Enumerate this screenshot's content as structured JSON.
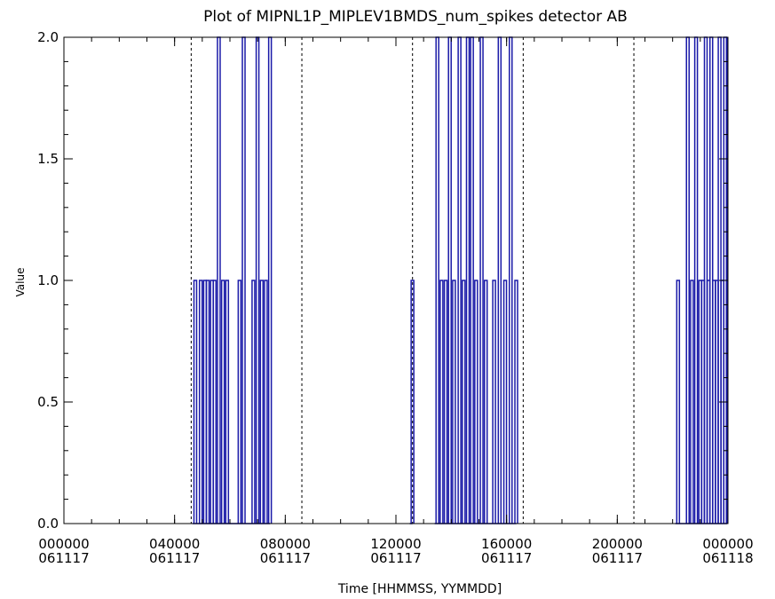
{
  "chart_data": {
    "type": "line",
    "title": "Plot of MIPNL1P_MIPLEV1BMDS_num_spikes detector AB",
    "xlabel": "Time [HHMMSS, YYMMDD]",
    "ylabel": "Value",
    "xlim_hours": [
      0,
      24
    ],
    "ylim": [
      0.0,
      2.0
    ],
    "x_ticks": [
      {
        "time": "000000",
        "date": "061117"
      },
      {
        "time": "040000",
        "date": "061117"
      },
      {
        "time": "080000",
        "date": "061117"
      },
      {
        "time": "120000",
        "date": "061117"
      },
      {
        "time": "160000",
        "date": "061117"
      },
      {
        "time": "200000",
        "date": "061117"
      },
      {
        "time": "000000",
        "date": "061118"
      }
    ],
    "y_ticks": [
      "0.0",
      "0.5",
      "1.0",
      "1.5",
      "2.0"
    ],
    "segment_boundaries_hours": [
      4.6,
      8.6,
      12.6,
      16.6,
      20.6
    ],
    "series": [
      {
        "color": "#1a1aa8",
        "spikes": [
          {
            "x": 4.7,
            "y": 1
          },
          {
            "x": 4.9,
            "y": 1
          },
          {
            "x": 5.05,
            "y": 1
          },
          {
            "x": 5.15,
            "y": 1
          },
          {
            "x": 5.3,
            "y": 1
          },
          {
            "x": 5.4,
            "y": 1
          },
          {
            "x": 5.55,
            "y": 2
          },
          {
            "x": 5.7,
            "y": 1
          },
          {
            "x": 5.85,
            "y": 1
          },
          {
            "x": 6.3,
            "y": 1
          },
          {
            "x": 6.45,
            "y": 2
          },
          {
            "x": 6.8,
            "y": 1
          },
          {
            "x": 6.95,
            "y": 2
          },
          {
            "x": 7.1,
            "y": 1
          },
          {
            "x": 7.25,
            "y": 1
          },
          {
            "x": 7.4,
            "y": 2
          },
          {
            "x": 12.55,
            "y": 1
          },
          {
            "x": 13.45,
            "y": 2
          },
          {
            "x": 13.6,
            "y": 1
          },
          {
            "x": 13.75,
            "y": 1
          },
          {
            "x": 13.9,
            "y": 2
          },
          {
            "x": 14.05,
            "y": 1
          },
          {
            "x": 14.25,
            "y": 2
          },
          {
            "x": 14.4,
            "y": 1
          },
          {
            "x": 14.55,
            "y": 2
          },
          {
            "x": 14.7,
            "y": 2
          },
          {
            "x": 14.85,
            "y": 1
          },
          {
            "x": 15.05,
            "y": 2
          },
          {
            "x": 15.2,
            "y": 1
          },
          {
            "x": 15.5,
            "y": 1
          },
          {
            "x": 15.7,
            "y": 2
          },
          {
            "x": 15.9,
            "y": 1
          },
          {
            "x": 16.1,
            "y": 2
          },
          {
            "x": 16.3,
            "y": 1
          },
          {
            "x": 22.15,
            "y": 1
          },
          {
            "x": 22.5,
            "y": 2
          },
          {
            "x": 22.65,
            "y": 1
          },
          {
            "x": 22.8,
            "y": 2
          },
          {
            "x": 22.95,
            "y": 1
          },
          {
            "x": 23.05,
            "y": 1
          },
          {
            "x": 23.15,
            "y": 2
          },
          {
            "x": 23.25,
            "y": 1
          },
          {
            "x": 23.35,
            "y": 2
          },
          {
            "x": 23.45,
            "y": 1
          },
          {
            "x": 23.55,
            "y": 1
          },
          {
            "x": 23.65,
            "y": 2
          },
          {
            "x": 23.75,
            "y": 1
          },
          {
            "x": 23.85,
            "y": 2
          },
          {
            "x": 23.95,
            "y": 1
          },
          {
            "x": 24.1,
            "y": 2
          },
          {
            "x": 24.25,
            "y": 1
          },
          {
            "x": 24.4,
            "y": 2
          },
          {
            "x": 24.55,
            "y": 1
          },
          {
            "x": 24.7,
            "y": 1
          },
          {
            "x": 24.85,
            "y": 2
          },
          {
            "x": 25.0,
            "y": 1
          },
          {
            "x": 25.2,
            "y": 1
          }
        ]
      }
    ],
    "grid": false,
    "legend": "none"
  }
}
